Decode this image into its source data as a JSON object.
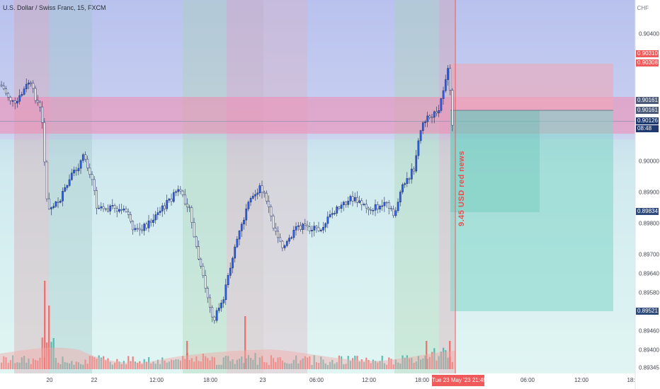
{
  "header": {
    "title": "U.S. Dollar / Swiss Franc, 15, FXCM",
    "currency": "CHF"
  },
  "annotation": {
    "text": "9.45 USD red news"
  },
  "price_scale": {
    "ticks": [
      "0.90400",
      "0.90000",
      "0.89900",
      "0.89800",
      "0.89700",
      "0.89640",
      "0.89580",
      "0.89460",
      "0.89400",
      "0.89345"
    ],
    "badges": {
      "target_top": "0.90310",
      "target_bottom": "0.90308",
      "entry_top": "0.90161",
      "entry_bottom": "0.90161",
      "last_price": "0.90126",
      "countdown": "08:48",
      "stop": "0.89834",
      "target_low": "0.89521"
    }
  },
  "time_axis": {
    "labels": [
      "20",
      "22",
      "12:00",
      "18:00",
      "23",
      "06:00",
      "12:00",
      "18:00",
      "06:00",
      "12:00",
      "18:"
    ],
    "crosshair_label": "Tue 23 May '23   21:45"
  },
  "colors": {
    "up": "#2962ff",
    "down": "#ffffff",
    "volume_up": "#26a69a",
    "volume_down": "#ef5350",
    "accent_red": "#f05a5a",
    "last_price_bg": "#1e3a6e",
    "target_bg": "#2e4a7a"
  },
  "chart_data": {
    "type": "candlestick",
    "symbol": "USDCHF",
    "timeframe": "15",
    "current_price": 0.90126,
    "zones": [
      {
        "name": "resistance",
        "from": 0.9008,
        "to": 0.9018
      },
      {
        "name": "long-target",
        "from": 0.90161,
        "to": 0.9031
      },
      {
        "name": "long-profit",
        "from": 0.89521,
        "to": 0.90161
      },
      {
        "name": "stop-zone",
        "from": 0.89834,
        "to": 0.90161
      }
    ],
    "levels": [
      0.9031,
      0.90308,
      0.90161,
      0.90126,
      0.89834,
      0.89521
    ]
  }
}
